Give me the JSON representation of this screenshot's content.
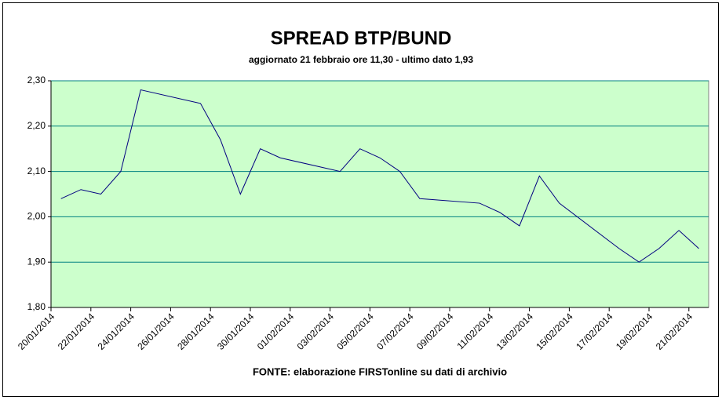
{
  "chart_data": {
    "type": "line",
    "title": "SPREAD BTP/BUND",
    "subtitle": "aggiornato 21 febbraio ore 11,30 - ultimo dato 1,93",
    "source": "FONTE: elaborazione FIRSTonline su dati di archivio",
    "x": [
      "20/01/2014",
      "21/01/2014",
      "22/01/2014",
      "23/01/2014",
      "24/01/2014",
      "27/01/2014",
      "28/01/2014",
      "29/01/2014",
      "30/01/2014",
      "31/01/2014",
      "03/02/2014",
      "04/02/2014",
      "05/02/2014",
      "06/02/2014",
      "07/02/2014",
      "10/02/2014",
      "11/02/2014",
      "12/02/2014",
      "13/02/2014",
      "14/02/2014",
      "17/02/2014",
      "18/02/2014",
      "19/02/2014",
      "20/02/2014",
      "21/02/2014"
    ],
    "values": [
      2.04,
      2.06,
      2.05,
      2.1,
      2.28,
      2.25,
      2.17,
      2.05,
      2.15,
      2.13,
      2.1,
      2.15,
      2.13,
      2.1,
      2.04,
      2.03,
      2.01,
      1.98,
      2.09,
      2.03,
      1.93,
      1.9,
      1.93,
      1.97,
      1.93
    ],
    "color": "#000080",
    "plot_background": "#ccffcc",
    "grid_color": "#008080",
    "grid": true,
    "ylim": [
      1.8,
      2.3
    ],
    "yticks": [
      {
        "value": 1.8,
        "label": "1,80"
      },
      {
        "value": 1.9,
        "label": "1,90"
      },
      {
        "value": 2.0,
        "label": "2,00"
      },
      {
        "value": 2.1,
        "label": "2,10"
      },
      {
        "value": 2.2,
        "label": "2,20"
      },
      {
        "value": 2.3,
        "label": "2,30"
      }
    ],
    "xticks": [
      "20/01/2014",
      "22/01/2014",
      "24/01/2014",
      "26/01/2014",
      "28/01/2014",
      "30/01/2014",
      "01/02/2014",
      "03/02/2014",
      "05/02/2014",
      "07/02/2014",
      "09/02/2014",
      "11/02/2014",
      "13/02/2014",
      "15/02/2014",
      "17/02/2014",
      "19/02/2014",
      "21/02/2014"
    ]
  }
}
